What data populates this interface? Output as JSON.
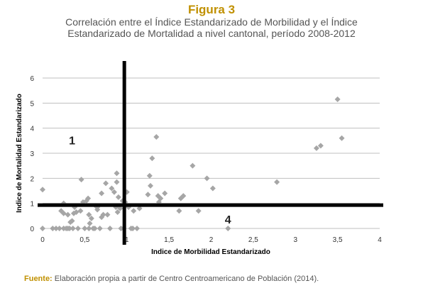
{
  "header": {
    "figure_label": "Figura 3",
    "title_line1": "Correlación entre el Índice Estandarizado de Morbilidad y el Índice",
    "title_line2": "Estandarizado de Mortalidad a nivel cantonal, período 2008-2012"
  },
  "colors": {
    "figure_label": "#c09000",
    "source_label": "#c09000",
    "points": "#a6a6a6",
    "gridlines": "#bfbfbf",
    "reference_lines": "#000000"
  },
  "chart_data": {
    "type": "scatter",
    "xlabel": "Indice de Morbilidad Estandarizado",
    "ylabel": "Indice de Mortalidad Estandarizado",
    "xlim": [
      0,
      4
    ],
    "ylim": [
      0,
      6
    ],
    "x_ticks": [
      "0",
      "0,5",
      "1",
      "1,5",
      "2",
      "2,5",
      "3",
      "3,5",
      "4"
    ],
    "y_ticks": [
      "0",
      "1",
      "2",
      "3",
      "4",
      "5",
      "6"
    ],
    "grid": "horizontal",
    "reference_lines": {
      "x": 0.97,
      "y": 0.93
    },
    "quadrant_labels": [
      {
        "text": "1",
        "x": 0.35,
        "y": 3.35
      },
      {
        "text": "4",
        "x": 2.2,
        "y": 0.2
      }
    ],
    "points": [
      [
        0.0,
        1.55
      ],
      [
        0.0,
        0.0
      ],
      [
        0.12,
        0.0
      ],
      [
        0.16,
        0.0
      ],
      [
        0.2,
        0.0
      ],
      [
        0.22,
        0.7
      ],
      [
        0.25,
        0.0
      ],
      [
        0.25,
        0.6
      ],
      [
        0.25,
        1.0
      ],
      [
        0.28,
        0.0
      ],
      [
        0.3,
        0.55
      ],
      [
        0.3,
        0.0
      ],
      [
        0.32,
        0.0
      ],
      [
        0.33,
        0.25
      ],
      [
        0.35,
        0.3
      ],
      [
        0.36,
        0.0
      ],
      [
        0.37,
        0.6
      ],
      [
        0.38,
        0.85
      ],
      [
        0.4,
        0.65
      ],
      [
        0.42,
        0.0
      ],
      [
        0.45,
        0.7
      ],
      [
        0.46,
        1.95
      ],
      [
        0.48,
        1.05
      ],
      [
        0.5,
        0.0
      ],
      [
        0.52,
        1.1
      ],
      [
        0.54,
        1.2
      ],
      [
        0.55,
        0.55
      ],
      [
        0.55,
        0.0
      ],
      [
        0.56,
        0.2
      ],
      [
        0.58,
        0.4
      ],
      [
        0.6,
        0.0
      ],
      [
        0.62,
        0.0
      ],
      [
        0.63,
        0.9
      ],
      [
        0.65,
        0.85
      ],
      [
        0.65,
        0.75
      ],
      [
        0.68,
        0.0
      ],
      [
        0.7,
        0.45
      ],
      [
        0.7,
        1.4
      ],
      [
        0.72,
        0.55
      ],
      [
        0.75,
        1.8
      ],
      [
        0.77,
        0.55
      ],
      [
        0.8,
        0.0
      ],
      [
        0.82,
        1.6
      ],
      [
        0.85,
        1.45
      ],
      [
        0.87,
        0.85
      ],
      [
        0.88,
        2.2
      ],
      [
        0.88,
        1.85
      ],
      [
        0.89,
        0.65
      ],
      [
        0.9,
        1.25
      ],
      [
        0.92,
        0.8
      ],
      [
        0.93,
        0.0
      ],
      [
        0.95,
        1.1
      ],
      [
        0.96,
        0.0
      ],
      [
        0.98,
        1.05
      ],
      [
        1.0,
        1.45
      ],
      [
        1.02,
        0.85
      ],
      [
        1.05,
        0.0
      ],
      [
        1.07,
        0.0
      ],
      [
        1.08,
        0.7
      ],
      [
        1.12,
        0.0
      ],
      [
        1.15,
        0.8
      ],
      [
        1.25,
        1.35
      ],
      [
        1.27,
        2.1
      ],
      [
        1.28,
        1.7
      ],
      [
        1.3,
        2.8
      ],
      [
        1.35,
        3.65
      ],
      [
        1.37,
        1.3
      ],
      [
        1.38,
        1.05
      ],
      [
        1.4,
        1.2
      ],
      [
        1.45,
        1.4
      ],
      [
        1.62,
        0.7
      ],
      [
        1.64,
        1.2
      ],
      [
        1.67,
        1.3
      ],
      [
        1.78,
        2.5
      ],
      [
        1.85,
        0.7
      ],
      [
        1.95,
        2.0
      ],
      [
        2.02,
        1.6
      ],
      [
        2.2,
        0.0
      ],
      [
        2.78,
        1.85
      ],
      [
        3.25,
        3.2
      ],
      [
        3.3,
        3.3
      ],
      [
        3.5,
        5.15
      ],
      [
        3.55,
        3.6
      ]
    ]
  },
  "footer": {
    "source_label": "Fuente:",
    "source_text": " Elaboración propia a partir de Centro Centroamericano de Población (2014)."
  }
}
